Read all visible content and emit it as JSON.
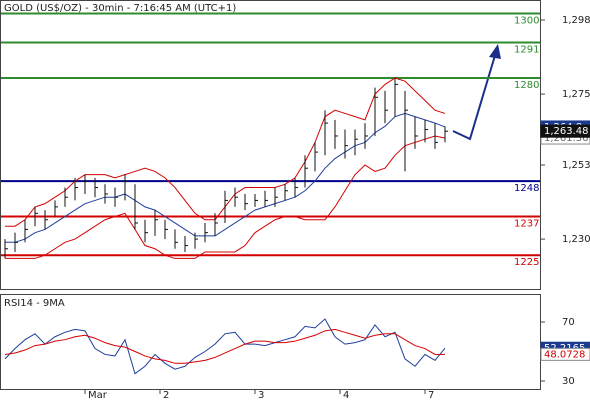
{
  "chart_data": [
    {
      "type": "ohlc",
      "title": "GOLD (US$/OZ) - 30min - 7:16:45 AM (UTC+1)",
      "color": "#111111",
      "high": [
        1230,
        1232,
        1236,
        1240,
        1239,
        1242,
        1246,
        1249,
        1250,
        1249,
        1247,
        1246,
        1250,
        1247,
        1236,
        1239,
        1236,
        1233,
        1231,
        1232,
        1235,
        1238,
        1245,
        1246,
        1244,
        1244,
        1245,
        1246,
        1247,
        1249,
        1256,
        1260,
        1270,
        1267,
        1264,
        1264,
        1266,
        1277,
        1276,
        1280,
        1276,
        1268,
        1267,
        1266,
        1265
      ],
      "low": [
        1224,
        1226,
        1229,
        1234,
        1233,
        1237,
        1240,
        1242,
        1244,
        1243,
        1241,
        1240,
        1242,
        1233,
        1229,
        1231,
        1230,
        1227,
        1226,
        1227,
        1229,
        1231,
        1235,
        1240,
        1239,
        1240,
        1240,
        1240,
        1242,
        1243,
        1246,
        1251,
        1256,
        1258,
        1255,
        1256,
        1258,
        1262,
        1266,
        1268,
        1251,
        1258,
        1260,
        1258,
        1260
      ],
      "close": [
        1227,
        1229,
        1233,
        1238,
        1236,
        1240,
        1243,
        1246,
        1248,
        1246,
        1244,
        1243,
        1248,
        1235,
        1232,
        1236,
        1233,
        1229,
        1228,
        1230,
        1232,
        1235,
        1242,
        1243,
        1241,
        1242,
        1242,
        1243,
        1245,
        1246,
        1252,
        1257,
        1266,
        1262,
        1259,
        1261,
        1262,
        1274,
        1270,
        1278,
        1270,
        1262,
        1264,
        1260,
        1263.48
      ],
      "close_value_labels": {
        "44": "1,263.48"
      },
      "bands": [
        {
          "color": "#d40000",
          "values": [
            1234,
            1234,
            1236,
            1240,
            1241,
            1243,
            1245,
            1248,
            1250,
            1250,
            1250,
            1249,
            1250,
            1251,
            1252,
            1251,
            1249,
            1246,
            1242,
            1238,
            1236,
            1236,
            1240,
            1244,
            1246,
            1246,
            1246,
            1246,
            1247,
            1249,
            1254,
            1260,
            1268,
            1270,
            1269,
            1268,
            1267,
            1275,
            1278,
            1280,
            1279,
            1276,
            1273,
            1270,
            1269
          ]
        },
        {
          "color": "#1f3f9f",
          "values": [
            1229,
            1229,
            1230,
            1232,
            1233,
            1235,
            1237,
            1239,
            1241,
            1242,
            1243,
            1243,
            1244,
            1242,
            1240,
            1239,
            1237,
            1235,
            1233,
            1231,
            1231,
            1231,
            1233,
            1235,
            1237,
            1239,
            1240,
            1241,
            1242,
            1243,
            1245,
            1248,
            1252,
            1255,
            1257,
            1259,
            1260,
            1263,
            1265,
            1268,
            1269,
            1268,
            1267,
            1266,
            1264.8
          ],
          "value_labels": {
            "44": "1,264.8"
          }
        },
        {
          "color": "#d40000",
          "values": [
            1224,
            1224,
            1224,
            1224,
            1225,
            1227,
            1229,
            1230,
            1232,
            1234,
            1236,
            1237,
            1238,
            1233,
            1228,
            1227,
            1225,
            1224,
            1224,
            1224,
            1226,
            1226,
            1226,
            1226,
            1228,
            1232,
            1234,
            1236,
            1237,
            1237,
            1236,
            1236,
            1236,
            1240,
            1245,
            1250,
            1253,
            1251,
            1252,
            1256,
            1259,
            1260,
            1261,
            1262,
            1261.36
          ],
          "value_labels": {
            "44": "1,261.36"
          }
        }
      ],
      "levels": [
        {
          "value": 1300,
          "color": "#2e8b2e"
        },
        {
          "value": 1291,
          "color": "#2e8b2e"
        },
        {
          "value": 1280,
          "color": "#2e8b2e"
        },
        {
          "value": 1248,
          "color": "#00008b"
        },
        {
          "value": 1237,
          "color": "#d40000"
        },
        {
          "value": 1225,
          "color": "#d40000"
        }
      ],
      "ylim": [
        1214.2,
        1304.2
      ],
      "yticks": [
        {
          "value": 1230,
          "label": "1,230"
        },
        {
          "value": 1253,
          "label": "1,253"
        },
        {
          "value": 1275,
          "label": "1,275"
        },
        {
          "value": 1298,
          "label": "1,298"
        }
      ],
      "xticks": [
        {
          "value": 8,
          "label": "Mar"
        },
        {
          "value": 15.5,
          "label": "2"
        },
        {
          "value": 25,
          "label": "3"
        },
        {
          "value": 33.5,
          "label": "4"
        },
        {
          "value": 42,
          "label": "7"
        }
      ]
    },
    {
      "type": "line",
      "title": "RSI14 - 9MA",
      "series": [
        {
          "color": "#1f3f9f",
          "values": [
            45,
            52,
            58,
            62,
            55,
            60,
            63,
            65,
            64,
            52,
            48,
            47,
            58,
            35,
            40,
            48,
            42,
            38,
            40,
            46,
            50,
            55,
            62,
            63,
            55,
            55,
            54,
            56,
            58,
            60,
            67,
            66,
            72,
            60,
            55,
            56,
            58,
            68,
            60,
            63,
            45,
            40,
            48,
            44,
            52.2165
          ]
        },
        {
          "color": "#d40000",
          "values": [
            48,
            49,
            51,
            54,
            55,
            57,
            58,
            60,
            61,
            59,
            56,
            54,
            53,
            50,
            47,
            45,
            44,
            42,
            42,
            43,
            44,
            46,
            49,
            52,
            55,
            57,
            57,
            56,
            56,
            57,
            59,
            61,
            64,
            65,
            63,
            61,
            59,
            61,
            62,
            62,
            58,
            54,
            52,
            48,
            48.0728
          ]
        }
      ],
      "ylim": [
        23.9,
        88.3
      ],
      "yticks": [
        30,
        70
      ]
    }
  ]
}
